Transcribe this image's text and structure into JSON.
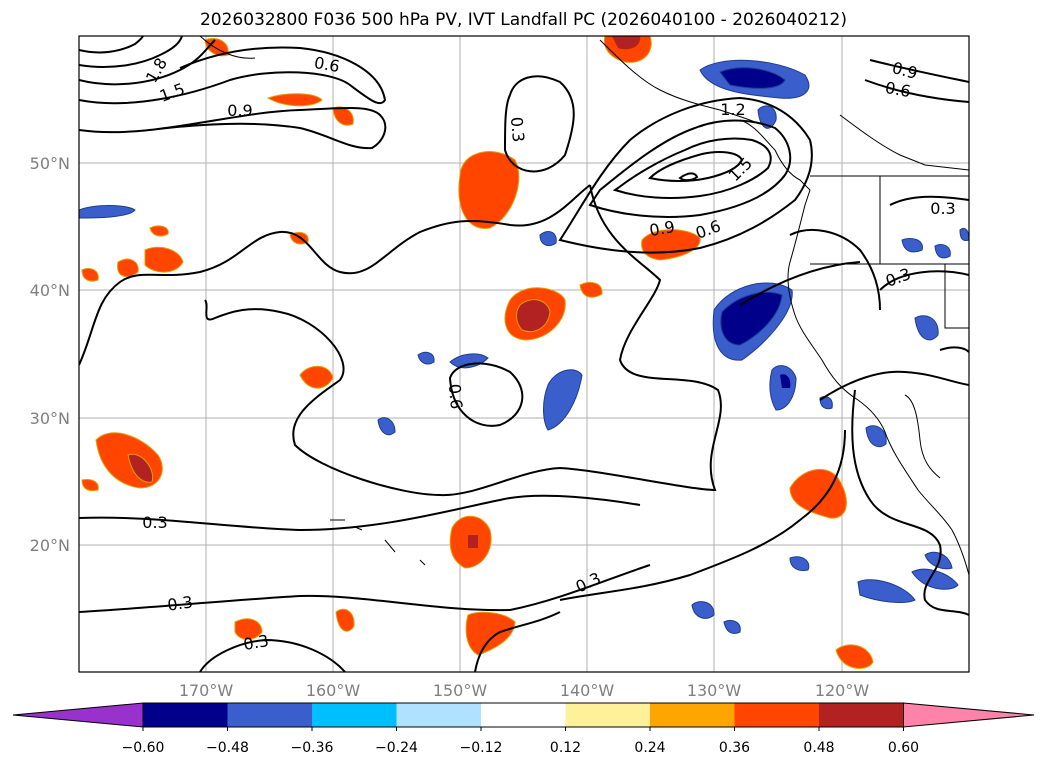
{
  "title": "2026032800 F036 500 hPa PV, IVT Landfall PC (2026040100 - 2026040212)",
  "map": {
    "lat_ticks": [
      "50°N",
      "40°N",
      "30°N",
      "20°N"
    ],
    "lon_ticks": [
      "170°W",
      "160°W",
      "150°W",
      "140°W",
      "130°W",
      "120°W"
    ],
    "extent": {
      "lon_min": -180,
      "lon_max": -110,
      "lat_min": 10,
      "lat_max": 60
    }
  },
  "contour_labels": {
    "l03a": "0.3",
    "l03b": "0.3",
    "l03c": "0.3",
    "l03d": "0.3",
    "l03e": "0.3",
    "l03f": "0.3",
    "l03g": "0.3",
    "l06a": "0.6",
    "l06b": "0.6",
    "l06c": "0.6",
    "l06d": "0.6",
    "l09a": "0.9",
    "l09b": "0.9",
    "l09c": "0.9",
    "l12a": "1.2",
    "l15a": "1.5",
    "l15b": "1.5",
    "l18a": "1.8"
  },
  "colorbar": {
    "ticks": [
      "−0.60",
      "−0.48",
      "−0.36",
      "−0.24",
      "−0.12",
      "0.12",
      "0.24",
      "0.36",
      "0.48",
      "0.60"
    ],
    "colors": [
      "#9932cc",
      "#00008b",
      "#3a5fcd",
      "#00bfff",
      "#b0e2ff",
      "#ffffff",
      "#fff09a",
      "#ffa500",
      "#ff4500",
      "#b22222",
      "#ff82ab"
    ]
  }
}
